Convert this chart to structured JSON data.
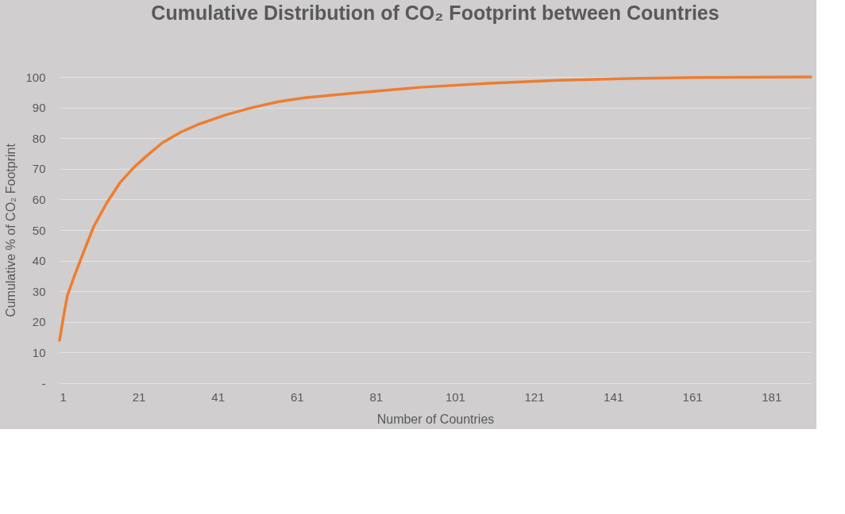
{
  "chart_data": {
    "type": "line",
    "title": "Cumulative Distribution of CO₂ Footprint between Countries",
    "xlabel": "Number of Countries",
    "ylabel": "Cumulative % of CO₂ Footprint",
    "series": [
      {
        "color": "#ed7d31",
        "x": [
          1,
          2,
          3,
          4.7,
          7,
          9.7,
          13,
          16.3,
          19.7,
          23,
          27,
          31.7,
          36.3,
          43,
          49.7,
          56.3,
          63,
          74.6,
          92,
          109.7,
          127,
          144.7,
          162,
          191
        ],
        "values": [
          14,
          21.8,
          28.7,
          34.8,
          42.6,
          51.3,
          59,
          65.5,
          70.3,
          74.2,
          78.5,
          82,
          84.6,
          87.6,
          90,
          91.9,
          93.2,
          94.6,
          96.6,
          97.9,
          98.9,
          99.5,
          99.8,
          100
        ]
      }
    ],
    "xlim": [
      1,
      191
    ],
    "xticks": [
      1,
      21,
      41,
      61,
      81,
      101,
      121,
      141,
      161,
      181
    ],
    "ylim": [
      0,
      100
    ],
    "yticks": [
      {
        "value": 0,
        "label": "-"
      },
      10,
      20,
      30,
      40,
      50,
      60,
      70,
      80,
      90,
      100
    ],
    "grid": "y",
    "legend": false,
    "marker": "none",
    "line_style": "solid"
  }
}
